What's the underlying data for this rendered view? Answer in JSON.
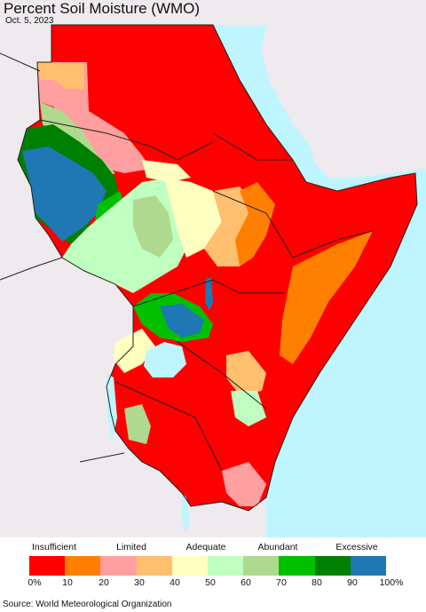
{
  "title": "Percent Soil Moisture (WMO)",
  "date": "Oct. 5, 2023",
  "source": "Source: World Meteorological Organization",
  "legend": {
    "categories": [
      "Insufficient",
      "Limited",
      "Adequate",
      "Abundant",
      "Excessive"
    ],
    "ticks": [
      "0%",
      "10",
      "20",
      "30",
      "40",
      "50",
      "60",
      "70",
      "80",
      "90",
      "100%"
    ],
    "colors": [
      "#ff0000",
      "#ff7f00",
      "#ff9f9f",
      "#ffbf6f",
      "#ffffbf",
      "#bfffbf",
      "#afd98f",
      "#00c000",
      "#008000",
      "#1f77b4"
    ]
  },
  "palette": {
    "water": "#bff5ff",
    "land_outside": "#eeeaee",
    "border": "#222222"
  }
}
